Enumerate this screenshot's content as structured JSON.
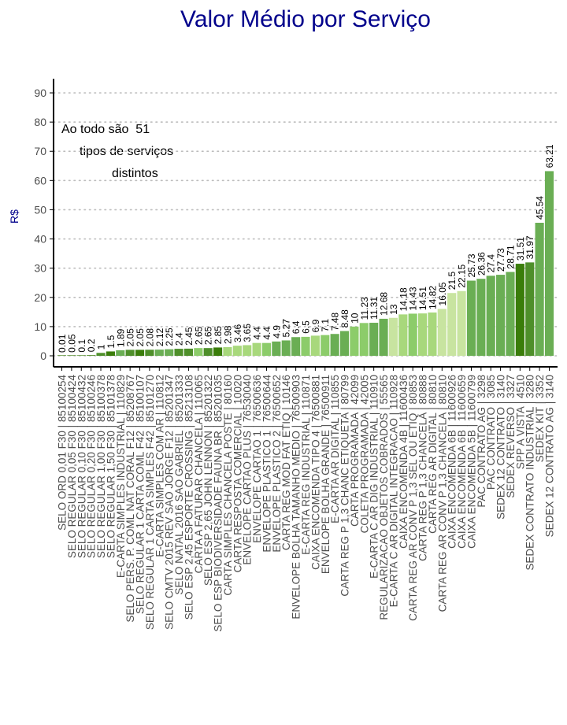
{
  "colors": {
    "title": "#00008B",
    "ylabel": "#00008B",
    "axis": "#000000",
    "grid": "#bdbdbd",
    "tick_text": "#4d4d4d",
    "palette": [
      "#3a7d0a",
      "#4e8f2a",
      "#6aae54",
      "#8ccc6a",
      "#a8d87c",
      "#c8e4a0"
    ]
  },
  "chart_data": {
    "type": "bar",
    "title": "Valor Médio por Serviço",
    "xlabel": "",
    "ylabel": "R$",
    "ylim": [
      -3,
      95
    ],
    "yticks": [
      0,
      10,
      20,
      30,
      40,
      50,
      60,
      70,
      80,
      90
    ],
    "grid": "horizontal dotted",
    "legend": "none",
    "annotation": [
      "Ao todo são  51",
      "tipos de serviços",
      "distintos"
    ],
    "categories": [
      "SELO ORD 0,01 F30 | 85100254",
      "SELO REGULAR 0,05 F30 | 85100424",
      "SELO REGULAR 0,10 F30 | 85100432",
      "SELO REGULAR 0,20 F30 | 85100246",
      "SELO REGULAR 1,00 F30 | 85100378",
      "SELO REGULAR 1,50 F30 | 85101378",
      "E-CARTA SIMPLES INDUSTRIAL | 110829",
      "SELO PERS. P. COML NAT CORAL F12 | 85208767",
      "SELO REGULAR 1 CARTA COML F42 | 85100107",
      "SELO REGULAR 1 CARTA SIMPLES F42 | 85101270",
      "E-CARTA SIMPLES COM AR | 110812",
      "SELO CMTV 2015 REV SAO JORGE F12 | 85201347",
      "SELO NATAL 2016 SAO GABRIEL | 85201333",
      "SELO ESP 2,45 ESPORTE CROSSING | 85213108",
      "CARTA A FATURAR CHANCELA | 110065",
      "SELO ESP 2,65 JOHN LENNON | 85201322",
      "SELO ESP BIODIVERSIDADE FAUNA BR | 85201035",
      "CARTA SIMPLES CHANCELA POSTE | 80160",
      "CARTA RESPOSTA COMERCIAL | 10020",
      "ENVELOPE CARTAO PLUS | 76530040",
      "ENVELOPE CARTAO 1 | 76500636",
      "ENVELOPE PLASTICO 1 | 76500644",
      "ENVELOPE PLASTICO 2 | 76500652",
      "CARTA REG MOD FAT ETIQ | 10146",
      "ENVELOPE BOLHA TAMANHO MEDIO | 76500903",
      "E-CARTA REG INDUSTRIAL | 110871",
      "CAIXA ENCOMENDA TIPO 4 | 76500881",
      "ENVELOPE BOLHA GRANDE | 76500911",
      "E-CARTA AR DIGITAL | 110855",
      "CARTA REG P 1,3 CHANC ETIQUETA | 80799",
      "CARTA PROGRAMADA | 42099",
      "COLETA PROGRAMADA | 42005",
      "E-CARTA C AR DIG INDUSTRIAL | 110910",
      "REGULARIZACAO OBJETOS COBRADOS | 55565",
      "E-CARTA C AR DIGITAL INTEGRACAO | 110928",
      "CAIXA ENCOMENDA 4B | 11600436",
      "CARTA REG AR CONV P 1,3 SEL OU ETIQ | 80853",
      "CARTA REG P 1,3 CHANCELA | 80888",
      "CARTA REG AR DIGITAL | 80810",
      "CARTA REG AR CONV P 1,3 CHANCELA | 80810",
      "CAIXA ENCOMENDA 6B | 11600926",
      "CAIXA ENCOMENDA 6B | 11600659",
      "CAIXA ENCOMENDA 5B | 11600799",
      "PAC CONTRATO AG | 3298",
      "PAC CONTRATO | 3085",
      "SEDEX 12 CONTRATO | 3140",
      "SEDEX REVERSO | 3327",
      "SPP A VISTA | 4510",
      "SEDEX CONTRATO INDUSTRIAL | 3280",
      "SEDEX KIT | 3352",
      "SEDEX 12 CONTRATO AG | 3140"
    ],
    "display_labels": [
      "SELO ORD 0,01 F30 | 85100254",
      "SELO REGULAR 0,05 F30 | 85100424",
      "SELO REGULAR 0,10 F30 | 85100432",
      "SELO REGULAR 0,20 F30 | 85100246",
      "SELO REGULAR 1,00 F30 | 85100378",
      "SELO REGULAR 1,50 F30 | 85101378",
      "E-CARTA SIMPLES INDUSTRIAL | 110829",
      "SELO PERS. P. COML NAT CORAL F12 | 85208767",
      "SELO REGULAR 1 CARTA COML F42 | 85100107",
      "SELO REGULAR 1 CARTA SIMPLES F42 | 85101270",
      "E-CARTA SIMPLES COM AR | 110812",
      "SELO CMTV 2015 REV SAO JORGE F12 | 85201347",
      "SELO NATAL 2016 SAO GABRIEL | 85201333",
      "SELO ESP 2,45 ESPORTE CROSSING | 85213108",
      "CARTA A FATURAR CHANCELA | 110065",
      "SELO ESP 2,65 JOHN LENNON | 85201322",
      "SELO ESP BIODIVERSIDADE FAUNA BR | 85201035",
      "CARTA SIMPLES CHANCELA POSTE | 80160",
      "CARTA RESPOSTA COMERCIAL | 10020",
      "ENVELOPE CARTAO PLUS | 76530040",
      "ENVELOPE CARTAO 1 | 76500636",
      "ENVELOPE PLASTICO 1 | 76500644",
      "ENVELOPE PLASTICO 2 | 76500652",
      "CARTA REG MOD FAT ETIQ | 10146",
      "ENVELOPE BOLHA TAMANHO MEDIO | 76500903",
      "E-CARTA REG INDUSTRIAL | 110871",
      "CAIXA ENCOMENDA TIPO 4 | 76500881",
      "ENVELOPE BOLHA GRANDE | 76500911",
      "E-CARTA AR DIGITAL | 110855",
      "CARTA REG P 1,3 CHANC ETIQUETA | 80799",
      "CARTA PROGRAMADA | 42099",
      "COLETA PROGRAMADA | 42005",
      "E-CARTA C AR DIG INDUSTRIAL | 110910",
      "REGULARIZACAO OBJETOS COBRADOS | 55565",
      "E-CARTA C AR DIGITAL INTEGRACAO | 110928",
      "CAIXA ENCOMENDA 4B | 11600436",
      "CARTA REG AR CONV P 1,3 SEL OU ETIQ | 80853",
      "CARTA REG P 1,3 CHANCELA | 80888",
      "CARTA REG AR DIGITAL | 80810",
      "CARTA REG AR CONV P 1,3 CHANCELA | 80810",
      "CAIXA ENCOMENDA 6B | 11600926",
      "CAIXA ENCOMENDA 6B | 11600659",
      "CAIXA ENCOMENDA 5B | 11600799",
      "PAC CONTRATO AG | 3298",
      "PAC CONTRATO | 3085",
      "SEDEX 12 CONTRATO | 3140",
      "SEDEX REVERSO | 3327",
      "SPP A VISTA | 4510",
      "SEDEX CONTRATO INDUSTRIAL | 3280",
      "SEDEX KIT | 3352",
      "SEDEX 12 CONTRATO AG | 3140"
    ],
    "values": [
      0.01,
      0.05,
      0.1,
      0.2,
      1,
      1.5,
      1.89,
      2.05,
      2.05,
      2.08,
      2.12,
      2.25,
      2.4,
      2.45,
      2.65,
      2.65,
      2.85,
      2.98,
      3.46,
      3.65,
      4.4,
      4.4,
      4.9,
      5.27,
      6.4,
      6.5,
      6.9,
      7.1,
      7.48,
      8.48,
      10,
      11.23,
      11.31,
      12.68,
      13,
      14.18,
      14.43,
      14.51,
      14.82,
      16.05,
      21.5,
      22.15,
      25.73,
      26.36,
      27.4,
      27.73,
      28.71,
      31.51,
      31.97,
      45.54,
      63.21
    ],
    "value_labels": [
      "0.01",
      "0.05",
      "0.1",
      "0.2",
      "1",
      "1.5",
      "1.89",
      "2.05",
      "2.05",
      "2.08",
      "2.12",
      "2.25",
      "2.4",
      "2.45",
      "2.65",
      "2.65",
      "2.85",
      "2.98",
      "3.46",
      "3.65",
      "4.4",
      "4.4",
      "4.9",
      "5.27",
      "6.4",
      "6.5",
      "6.9",
      "7.1",
      "7.48",
      "8.48",
      "10",
      "11.23",
      "11.31",
      "12.68",
      "13",
      "14.18",
      "14.43",
      "14.51",
      "14.82",
      "16.05",
      "21.5",
      "22.15",
      "25.73",
      "26.36",
      "27.4",
      "27.73",
      "28.71",
      "31.51",
      "31.97",
      "45.54",
      "63.21"
    ],
    "color_index": [
      0,
      0,
      0,
      0,
      1,
      0,
      2,
      1,
      0,
      1,
      2,
      2,
      1,
      1,
      3,
      1,
      0,
      4,
      4,
      4,
      4,
      3,
      2,
      2,
      2,
      3,
      4,
      3,
      2,
      2,
      3,
      3,
      2,
      2,
      5,
      4,
      3,
      4,
      4,
      5,
      5,
      5,
      2,
      2,
      2,
      2,
      2,
      0,
      1,
      2,
      2
    ]
  }
}
